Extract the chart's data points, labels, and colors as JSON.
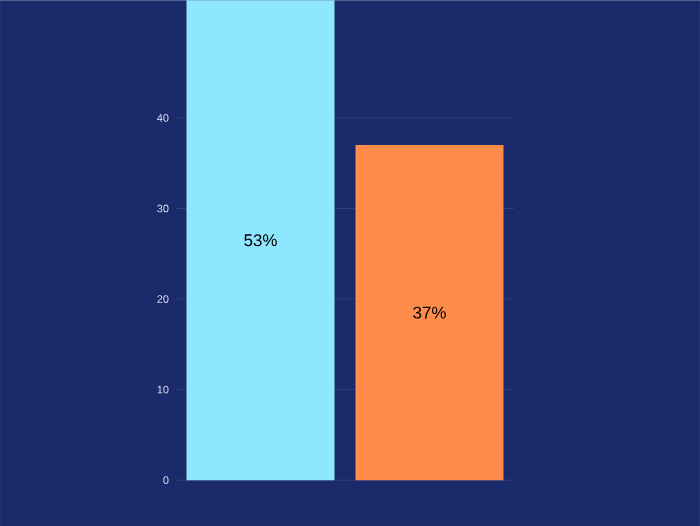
{
  "chart_data": {
    "type": "bar",
    "categories": [
      null,
      null
    ],
    "values": [
      53,
      37
    ],
    "colors": [
      "#8ee6ff",
      "#ff8c4a"
    ],
    "ylim": [
      0,
      53
    ],
    "yticks": [
      0,
      10,
      20,
      30,
      40
    ],
    "grid": "y",
    "value_labels": [
      "53%",
      "37%"
    ],
    "tick_labels": "y"
  }
}
